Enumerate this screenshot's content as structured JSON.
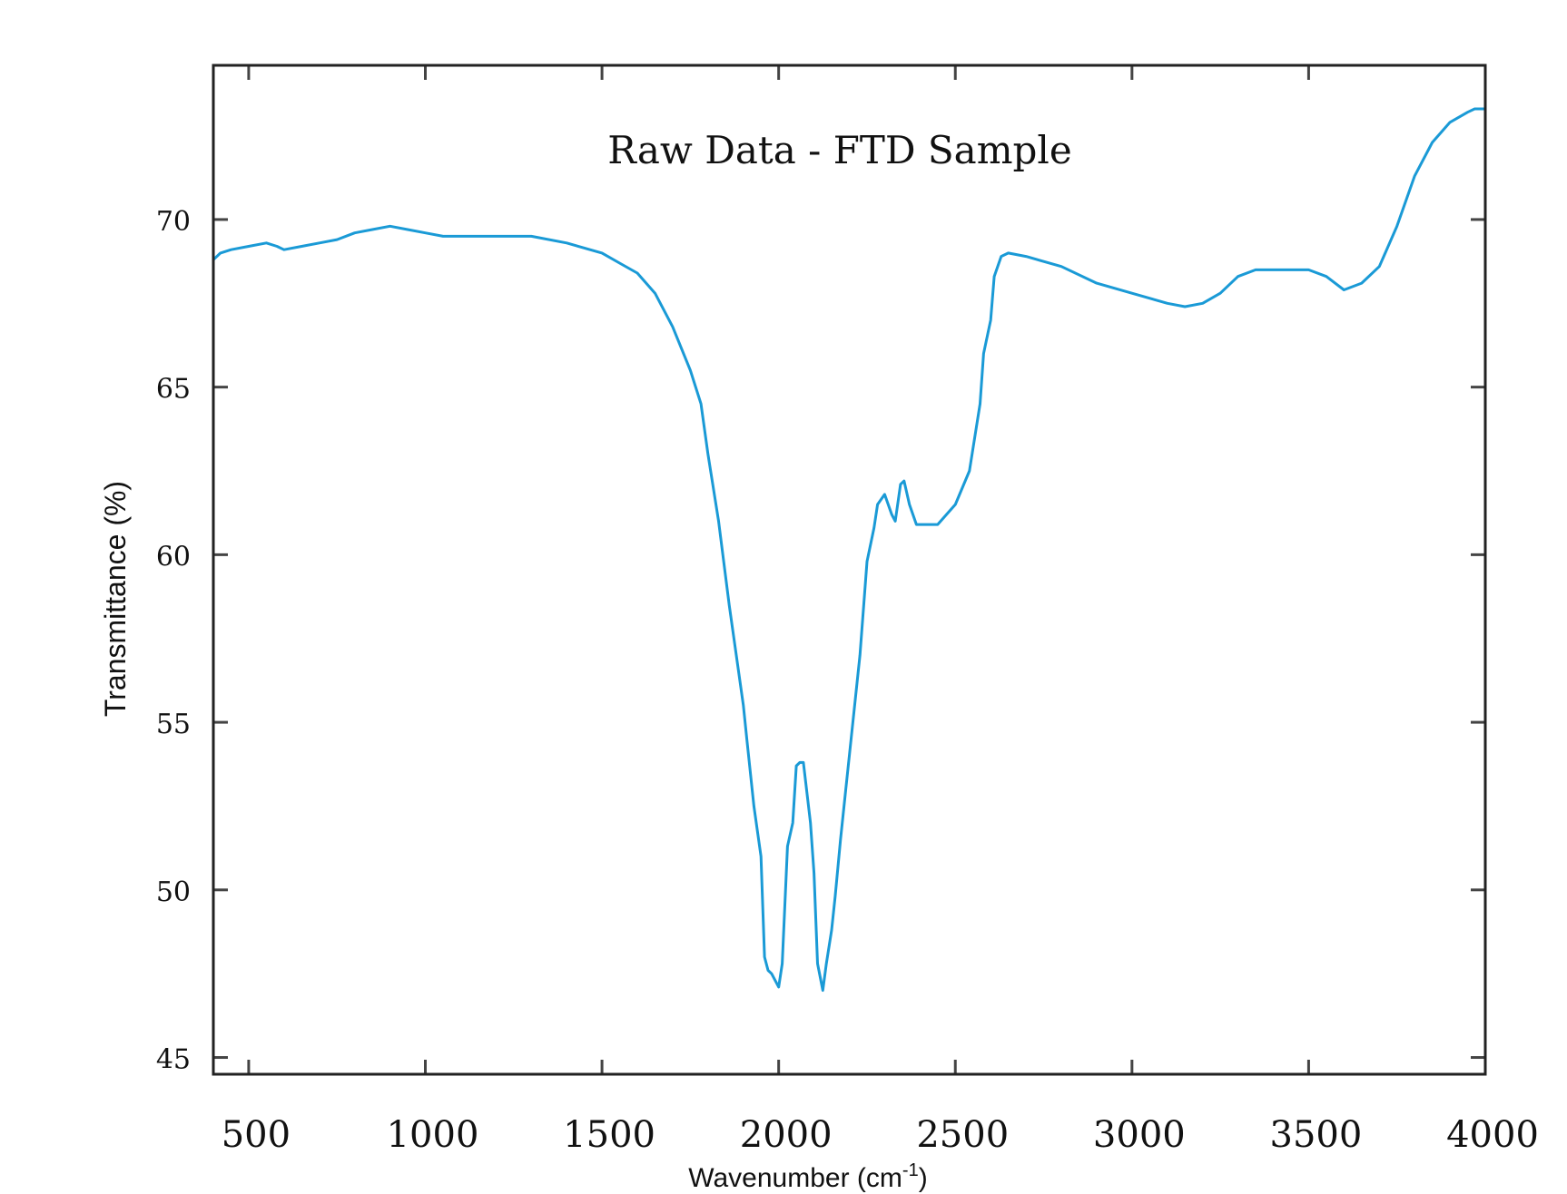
{
  "chart_data": {
    "type": "line",
    "title": "Raw Data - FTD Sample",
    "xlabel": "Wavenumber (cm",
    "xlabel_sup": "-1",
    "xlabel_end": ")",
    "ylabel": "Transmittance (%)",
    "xlim": [
      400,
      4000
    ],
    "ylim": [
      44.5,
      74.6
    ],
    "x_ticks": [
      500,
      1000,
      1500,
      2000,
      2500,
      3000,
      3500,
      4000
    ],
    "x_tick_labels": [
      "500",
      "1000",
      "1500",
      "2000",
      "2500",
      "3000",
      "3500",
      "4000"
    ],
    "y_ticks": [
      45,
      50,
      55,
      60,
      65,
      70
    ],
    "y_tick_labels": [
      "45",
      "50",
      "55",
      "60",
      "65",
      "70"
    ],
    "grid": false,
    "legend": "none",
    "line_color": "#1a9ad6",
    "series": [
      {
        "x": [
          400,
          420,
          450,
          500,
          550,
          580,
          600,
          650,
          700,
          750,
          800,
          850,
          900,
          950,
          1000,
          1050,
          1100,
          1200,
          1300,
          1400,
          1500,
          1550,
          1600,
          1650,
          1700,
          1750,
          1780,
          1800,
          1830,
          1860,
          1880,
          1900,
          1910,
          1930,
          1950,
          1960,
          1970,
          1980,
          2000,
          2010,
          2025,
          2040,
          2050,
          2060,
          2070,
          2090,
          2100,
          2110,
          2125,
          2135,
          2150,
          2160,
          2175,
          2190,
          2210,
          2230,
          2250,
          2270,
          2280,
          2300,
          2320,
          2330,
          2345,
          2355,
          2370,
          2390,
          2410,
          2450,
          2500,
          2540,
          2570,
          2580,
          2600,
          2610,
          2630,
          2650,
          2700,
          2800,
          2900,
          3000,
          3100,
          3150,
          3200,
          3250,
          3300,
          3350,
          3400,
          3450,
          3500,
          3550,
          3600,
          3650,
          3700,
          3750,
          3800,
          3850,
          3900,
          3950,
          3970,
          4000
        ],
        "y": [
          68.8,
          69.0,
          69.1,
          69.2,
          69.3,
          69.2,
          69.1,
          69.2,
          69.3,
          69.4,
          69.6,
          69.7,
          69.8,
          69.7,
          69.6,
          69.5,
          69.5,
          69.5,
          69.5,
          69.3,
          69.0,
          68.7,
          68.4,
          67.8,
          66.8,
          65.5,
          64.5,
          63.0,
          61.0,
          58.5,
          57.0,
          55.5,
          54.5,
          52.5,
          51.0,
          48.0,
          47.6,
          47.5,
          47.1,
          47.8,
          51.3,
          52.0,
          53.7,
          53.8,
          53.8,
          52.0,
          50.5,
          47.8,
          47.0,
          47.8,
          48.8,
          49.8,
          51.5,
          53.0,
          55.0,
          57.0,
          59.8,
          60.8,
          61.5,
          61.8,
          61.2,
          61.0,
          62.1,
          62.2,
          61.5,
          60.9,
          60.9,
          60.9,
          61.5,
          62.5,
          64.5,
          66.0,
          67.0,
          68.3,
          68.9,
          69.0,
          68.9,
          68.6,
          68.1,
          67.8,
          67.5,
          67.4,
          67.5,
          67.8,
          68.3,
          68.5,
          68.5,
          68.5,
          68.5,
          68.3,
          67.9,
          68.1,
          68.6,
          69.8,
          71.3,
          72.3,
          72.9,
          73.2,
          73.3,
          73.3
        ]
      }
    ]
  }
}
